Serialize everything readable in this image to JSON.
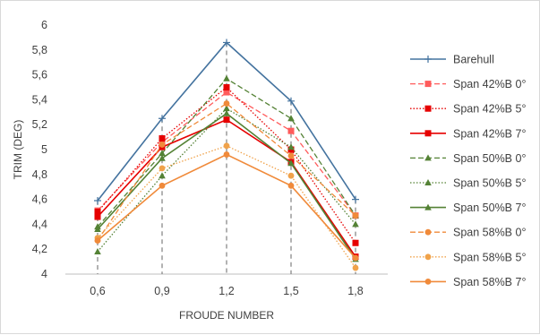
{
  "chart_data": {
    "type": "line",
    "xlabel": "FROUDE NUMBER",
    "ylabel": "TRIM (DEG)",
    "categories": [
      "0,6",
      "0,9",
      "1,2",
      "1,5",
      "1,8"
    ],
    "ylim": [
      4,
      6
    ],
    "ytick_step": 0.2,
    "yticks": [
      "4",
      "4,2",
      "4,4",
      "4,6",
      "4,8",
      "5",
      "5,2",
      "5,4",
      "5,6",
      "5,8",
      "6"
    ],
    "grid": false,
    "vertical_dropline_style": "dashed",
    "legend_position": "right",
    "series": [
      {
        "name": "Barehull",
        "values": [
          4.59,
          5.25,
          5.86,
          5.39,
          4.6
        ],
        "color": "#44739f",
        "dash": "solid",
        "marker": "plus"
      },
      {
        "name": "Span 42%B 0°",
        "values": [
          4.51,
          5.06,
          5.46,
          5.15,
          4.47
        ],
        "color": "#ff5b5b",
        "dash": "dashed",
        "marker": "square"
      },
      {
        "name": "Span 42%B 5°",
        "values": [
          4.5,
          5.09,
          5.5,
          5.0,
          4.25
        ],
        "color": "#e60000",
        "dash": "dotted",
        "marker": "square"
      },
      {
        "name": "Span 42%B 7°",
        "values": [
          4.46,
          5.02,
          5.24,
          4.9,
          4.14
        ],
        "color": "#e60000",
        "dash": "solid",
        "marker": "square"
      },
      {
        "name": "Span 50%B 0°",
        "values": [
          4.38,
          4.97,
          5.57,
          5.25,
          4.47
        ],
        "color": "#548235",
        "dash": "dashed",
        "marker": "triangle"
      },
      {
        "name": "Span 50%B 5°",
        "values": [
          4.18,
          4.79,
          5.33,
          5.02,
          4.4
        ],
        "color": "#548235",
        "dash": "dotted",
        "marker": "triangle"
      },
      {
        "name": "Span 50%B 7°",
        "values": [
          4.36,
          4.93,
          5.29,
          4.89,
          4.12
        ],
        "color": "#548235",
        "dash": "solid",
        "marker": "triangle"
      },
      {
        "name": "Span 58%B 0°",
        "values": [
          4.27,
          5.04,
          5.37,
          4.95,
          4.47
        ],
        "color": "#f08a3a",
        "dash": "dashed",
        "marker": "circle"
      },
      {
        "name": "Span 58%B 5°",
        "values": [
          4.29,
          4.85,
          5.03,
          4.79,
          4.05
        ],
        "color": "#f0a24a",
        "dash": "dotted",
        "marker": "circle"
      },
      {
        "name": "Span 58%B 7°",
        "values": [
          4.27,
          4.71,
          4.96,
          4.71,
          4.13
        ],
        "color": "#f08a3a",
        "dash": "solid",
        "marker": "circle"
      }
    ]
  }
}
